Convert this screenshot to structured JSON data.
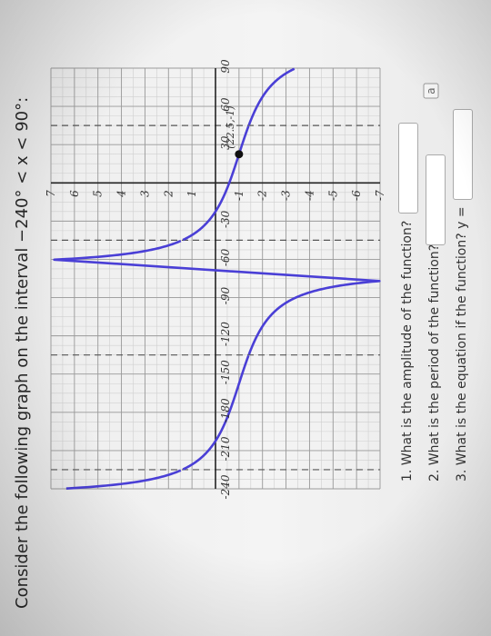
{
  "question": {
    "title": "Consider the following graph on the interval −240° < x < 90°:"
  },
  "prompts": [
    {
      "label": "1. What is the amplitude of the function?",
      "answer": ""
    },
    {
      "label": "2. What is the period of the function?",
      "answer": ""
    },
    {
      "label": "3. What is the equation if the function? y =",
      "answer": ""
    }
  ],
  "badge_icon": "page-icon",
  "badge_glyph": "a",
  "chart_data": {
    "type": "line",
    "function_shape": "inverted tangent curves with vertical asymptotes",
    "xlim": [
      -240,
      90
    ],
    "ylim": [
      -7,
      7
    ],
    "x_ticks": [
      -240,
      -210,
      -180,
      -150,
      -120,
      -90,
      -60,
      -30,
      30,
      60,
      90
    ],
    "x_tick_labels": [
      "-240",
      "-210",
      "-180",
      "-150",
      "-120",
      "-90",
      "-60",
      "-30",
      "30",
      "60",
      "90"
    ],
    "y_ticks": [
      7,
      6,
      5,
      4,
      3,
      2,
      1,
      -1,
      -2,
      -3,
      -4,
      -5,
      -6,
      -7
    ],
    "y_tick_labels": [
      "7",
      "6",
      "5",
      "4",
      "3",
      "2",
      "1",
      "-1",
      "-2",
      "-3",
      "-4",
      "-5",
      "-6",
      "-7"
    ],
    "asymptotes": [
      -225,
      -135,
      -45,
      45
    ],
    "curve_color": "#4a3fd6",
    "grid": true,
    "marked_point": {
      "x": 22.5,
      "y": -1,
      "label": "(22.5,-1)"
    }
  }
}
